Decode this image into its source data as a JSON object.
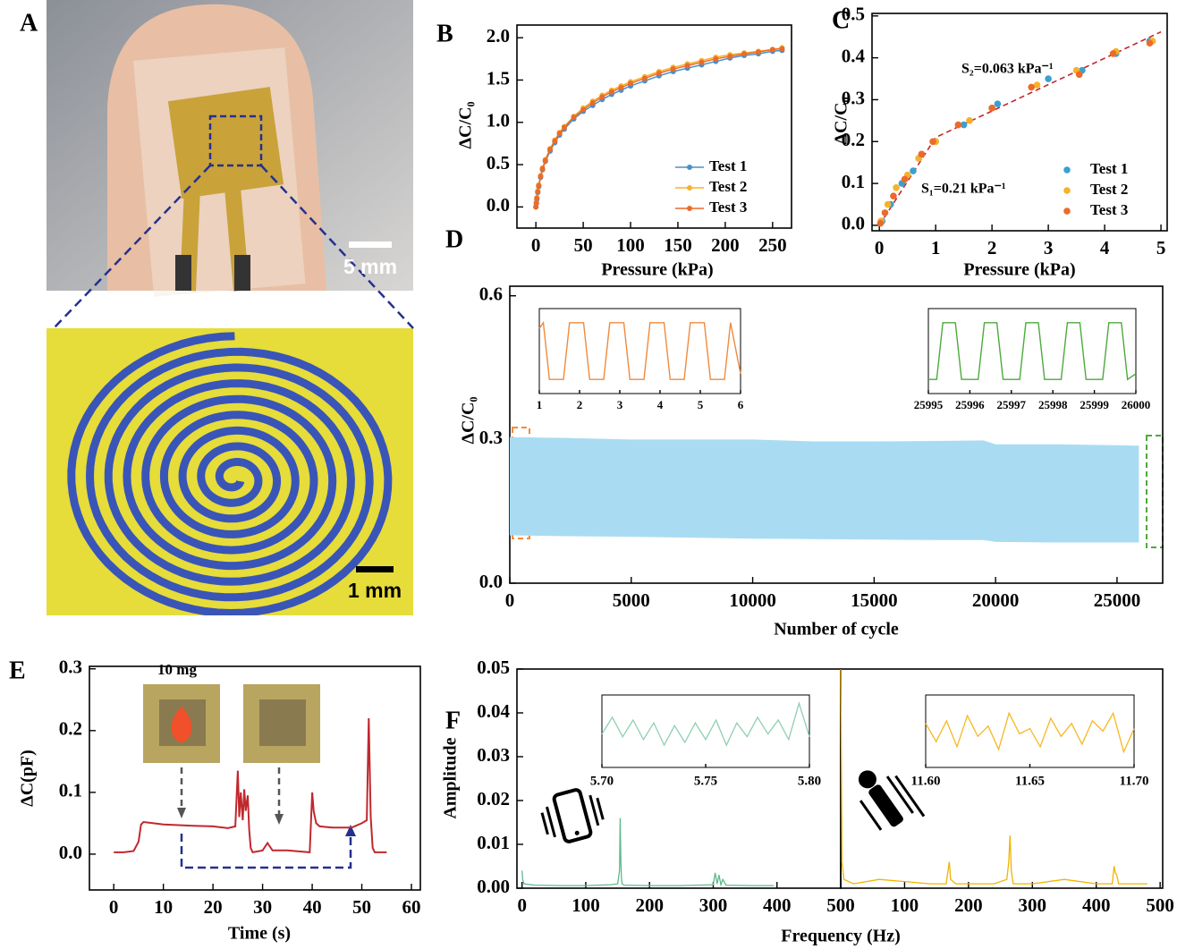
{
  "panel_a": {
    "label": "A",
    "scale_bars": [
      "5 mm",
      "1 mm"
    ]
  },
  "chart_data": [
    {
      "type": "line",
      "panel": "B",
      "xlabel": "Pressure (kPa)",
      "ylabel": "ΔC/C₀",
      "xlim": [
        -20,
        270
      ],
      "xticks": [
        0,
        50,
        100,
        150,
        200,
        250
      ],
      "ylim": [
        -0.25,
        2.15
      ],
      "yticks": [
        {
          "value": 0,
          "label": "0.0"
        },
        0.5,
        {
          "value": 1,
          "label": "1.0"
        },
        1.5,
        {
          "value": 2,
          "label": "2.0"
        }
      ],
      "legend": "lower right",
      "x": [
        0,
        0.5,
        1,
        2,
        3,
        5,
        7,
        10,
        15,
        20,
        25,
        30,
        40,
        50,
        60,
        70,
        80,
        90,
        100,
        115,
        130,
        145,
        160,
        175,
        190,
        205,
        220,
        235,
        250,
        260
      ],
      "series": [
        {
          "name": "Test 1",
          "color": "#4a90c8",
          "values": [
            0,
            0.04,
            0.09,
            0.17,
            0.24,
            0.35,
            0.44,
            0.54,
            0.66,
            0.76,
            0.85,
            0.92,
            1.04,
            1.13,
            1.2,
            1.27,
            1.33,
            1.38,
            1.43,
            1.49,
            1.55,
            1.6,
            1.64,
            1.68,
            1.72,
            1.76,
            1.79,
            1.81,
            1.84,
            1.85
          ]
        },
        {
          "name": "Test 2",
          "color": "#f5b22a",
          "values": [
            0,
            0.05,
            0.11,
            0.19,
            0.26,
            0.37,
            0.46,
            0.56,
            0.69,
            0.79,
            0.88,
            0.95,
            1.07,
            1.17,
            1.25,
            1.32,
            1.38,
            1.43,
            1.48,
            1.54,
            1.6,
            1.65,
            1.69,
            1.73,
            1.77,
            1.8,
            1.82,
            1.84,
            1.86,
            1.88
          ]
        },
        {
          "name": "Test 3",
          "color": "#ec6a2a",
          "values": [
            0,
            0.05,
            0.1,
            0.18,
            0.25,
            0.36,
            0.45,
            0.55,
            0.68,
            0.78,
            0.87,
            0.94,
            1.06,
            1.15,
            1.23,
            1.3,
            1.36,
            1.41,
            1.46,
            1.52,
            1.58,
            1.63,
            1.67,
            1.71,
            1.75,
            1.78,
            1.81,
            1.83,
            1.86,
            1.87
          ]
        }
      ]
    },
    {
      "type": "scatter",
      "panel": "C",
      "xlabel": "Pressure (kPa)",
      "ylabel": "ΔC/C₀",
      "xlim": [
        -0.13,
        5.11
      ],
      "xticks": [
        0,
        1,
        2,
        3,
        4,
        5
      ],
      "ylim": [
        -0.013,
        0.506
      ],
      "yticks": [
        {
          "value": 0,
          "label": "0.0"
        },
        0.1,
        0.2,
        0.3,
        0.4,
        0.5
      ],
      "legend": "lower right",
      "series": [
        {
          "name": "Test 1",
          "color": "#3aa0d0",
          "x": [
            0.05,
            0.2,
            0.4,
            0.6,
            0.7,
            1.0,
            1.5,
            2.1,
            3.0,
            3.6,
            4.2,
            4.8
          ],
          "values": [
            0.01,
            0.05,
            0.1,
            0.13,
            0.16,
            0.2,
            0.24,
            0.29,
            0.35,
            0.37,
            0.41,
            0.44
          ]
        },
        {
          "name": "Test 2",
          "color": "#f5b22a",
          "x": [
            0.03,
            0.15,
            0.3,
            0.5,
            0.7,
            1.0,
            1.6,
            2.0,
            2.8,
            3.5,
            4.2,
            4.85
          ],
          "values": [
            0.01,
            0.05,
            0.09,
            0.12,
            0.16,
            0.2,
            0.25,
            0.28,
            0.335,
            0.37,
            0.415,
            0.44
          ]
        },
        {
          "name": "Test 3",
          "color": "#ec6a2a",
          "x": [
            0.02,
            0.1,
            0.25,
            0.45,
            0.75,
            0.95,
            1.4,
            2.0,
            2.7,
            3.55,
            4.15,
            4.8
          ],
          "values": [
            0.005,
            0.03,
            0.07,
            0.11,
            0.17,
            0.2,
            0.24,
            0.28,
            0.33,
            0.36,
            0.41,
            0.435
          ]
        }
      ],
      "fit_line": {
        "color": "#c0282d",
        "x": [
          0,
          1,
          5
        ],
        "values": [
          0,
          0.21,
          0.462
        ]
      },
      "annotations": [
        "S₁=0.21 kPa⁻¹",
        "S₂=0.063 kPa⁻¹"
      ]
    },
    {
      "type": "area",
      "panel": "D",
      "xlabel": "Number of cycle",
      "ylabel": "ΔC/C₀",
      "xlim": [
        0,
        26880
      ],
      "xticks": [
        0,
        5000,
        10000,
        15000,
        20000,
        25000
      ],
      "ylim": [
        0,
        0.62
      ],
      "yticks": [
        {
          "value": 0,
          "label": "0.0"
        },
        0.3,
        0.6
      ],
      "color": "#a9dcf3",
      "x": [
        0,
        2500,
        5000,
        7500,
        10000,
        12500,
        15000,
        17500,
        19500,
        20000,
        22500,
        25000,
        25900
      ],
      "upper": [
        0.305,
        0.303,
        0.3,
        0.3,
        0.3,
        0.296,
        0.296,
        0.297,
        0.298,
        0.29,
        0.29,
        0.288,
        0.287
      ],
      "lower": [
        0.1,
        0.098,
        0.097,
        0.095,
        0.093,
        0.092,
        0.091,
        0.09,
        0.09,
        0.086,
        0.085,
        0.085,
        0.085
      ],
      "insets": [
        {
          "xlim": [
            1,
            6
          ],
          "xticks": [
            1,
            2,
            3,
            4,
            5,
            6
          ],
          "ylim": [
            0.05,
            0.35
          ],
          "color": "#f08a3c",
          "x": [
            1,
            1.1,
            1.25,
            1.6,
            1.75,
            2.1,
            2.25,
            2.6,
            2.75,
            3.1,
            3.25,
            3.6,
            3.75,
            4.1,
            4.25,
            4.6,
            4.75,
            5.1,
            5.25,
            5.6,
            5.75,
            6
          ],
          "values": [
            0.28,
            0.3,
            0.1,
            0.1,
            0.3,
            0.3,
            0.1,
            0.1,
            0.3,
            0.3,
            0.1,
            0.1,
            0.3,
            0.3,
            0.1,
            0.1,
            0.3,
            0.3,
            0.1,
            0.1,
            0.3,
            0.12
          ]
        },
        {
          "xlim": [
            25995,
            26000
          ],
          "xticks": [
            25995,
            25996,
            25997,
            25998,
            25999,
            26000
          ],
          "ylim": [
            0.05,
            0.35
          ],
          "color": "#4caa3c",
          "x": [
            25995,
            25995.2,
            25995.35,
            25995.65,
            25995.8,
            25996.2,
            25996.35,
            25996.65,
            25996.8,
            25997.2,
            25997.35,
            25997.65,
            25997.8,
            25998.2,
            25998.35,
            25998.65,
            25998.8,
            25999.2,
            25999.35,
            25999.65,
            25999.8,
            26000
          ],
          "values": [
            0.1,
            0.1,
            0.3,
            0.3,
            0.1,
            0.1,
            0.3,
            0.3,
            0.1,
            0.1,
            0.3,
            0.3,
            0.1,
            0.1,
            0.3,
            0.3,
            0.1,
            0.1,
            0.3,
            0.3,
            0.1,
            0.12
          ]
        }
      ]
    },
    {
      "type": "line",
      "panel": "E",
      "xlabel": "Time (s)",
      "ylabel": "ΔC(pF)",
      "xlim": [
        -4.9,
        61.8
      ],
      "xticks": [
        0,
        10,
        20,
        30,
        40,
        50,
        60
      ],
      "ylim": [
        -0.058,
        0.304
      ],
      "yticks": [
        {
          "value": 0,
          "label": "0.0"
        },
        0.1,
        0.2,
        0.3
      ],
      "color": "#c0282d",
      "annotation": "10 mg",
      "x": [
        0,
        2,
        4,
        5,
        5.5,
        6,
        8,
        10,
        13,
        16,
        20,
        23,
        24.5,
        25,
        25.3,
        25.6,
        26,
        26.3,
        26.6,
        27,
        27.3,
        27.6,
        28,
        30,
        31,
        32,
        35,
        39.5,
        40,
        40.3,
        40.8,
        41.5,
        44,
        48,
        50,
        51,
        51.4,
        51.8,
        52.2,
        52.6,
        55
      ],
      "values": [
        0.003,
        0.003,
        0.005,
        0.02,
        0.048,
        0.052,
        0.05,
        0.048,
        0.047,
        0.046,
        0.045,
        0.042,
        0.045,
        0.135,
        0.06,
        0.1,
        0.055,
        0.105,
        0.07,
        0.095,
        0.04,
        0.01,
        0.003,
        0.006,
        0.018,
        0.006,
        0.006,
        0.003,
        0.1,
        0.07,
        0.05,
        0.045,
        0.043,
        0.043,
        0.05,
        0.055,
        0.22,
        0.06,
        0.01,
        0.003,
        0.003
      ]
    },
    {
      "type": "spectrum",
      "panel": "F",
      "xlabel": "Frequency (Hz)",
      "ylabel": "Amplitude",
      "ylim": [
        0,
        0.05
      ],
      "yticks": [
        {
          "value": 0,
          "label": "0.00"
        },
        {
          "value": 0.01,
          "label": "0.01"
        },
        {
          "value": 0.02,
          "label": "0.02"
        },
        {
          "value": 0.03,
          "label": "0.03"
        },
        {
          "value": 0.04,
          "label": "0.04"
        },
        {
          "value": 0.05,
          "label": "0.05"
        }
      ],
      "subplots": [
        {
          "xlim": [
            -8,
            500
          ],
          "xticks": [
            0,
            100,
            200,
            300,
            400,
            500
          ],
          "color": "#5fb88e",
          "x": [
            0,
            1,
            3,
            20,
            60,
            100,
            140,
            150,
            153,
            154,
            155,
            156,
            157,
            160,
            200,
            250,
            300,
            303,
            306,
            309,
            312,
            315,
            320,
            360,
            395
          ],
          "values": [
            0.004,
            0.002,
            0.001,
            0.0007,
            0.0006,
            0.0006,
            0.0008,
            0.001,
            0.004,
            0.016,
            0.006,
            0.002,
            0.001,
            0.0007,
            0.0006,
            0.0006,
            0.0008,
            0.0035,
            0.001,
            0.003,
            0.0008,
            0.002,
            0.0007,
            0.0006,
            0.0006
          ],
          "inset": {
            "xlim": [
              5.7,
              5.8
            ],
            "xticks": [
              {
                "value": 5.7,
                "label": "5.70"
              },
              5.75,
              {
                "value": 5.8,
                "label": "5.80"
              }
            ],
            "ylim": [
              -1,
              1.6
            ],
            "color": "#8fcfb0",
            "x": [
              5.7,
              5.705,
              5.71,
              5.715,
              5.72,
              5.725,
              5.73,
              5.735,
              5.74,
              5.745,
              5.75,
              5.755,
              5.76,
              5.765,
              5.77,
              5.775,
              5.78,
              5.785,
              5.79,
              5.795,
              5.8
            ],
            "values": [
              0.2,
              0.8,
              0.1,
              0.7,
              0.0,
              0.6,
              -0.2,
              0.5,
              -0.1,
              0.6,
              0.0,
              0.7,
              -0.2,
              0.6,
              0.1,
              0.8,
              0.2,
              0.7,
              0.0,
              1.3,
              0.1
            ]
          }
        },
        {
          "xlim": [
            0,
            504
          ],
          "xticks": [
            100,
            200,
            300,
            400,
            500
          ],
          "color": "#f0b400",
          "x": [
            0,
            1,
            2,
            5,
            20,
            60,
            100,
            140,
            165,
            168,
            170,
            172,
            180,
            200,
            240,
            260,
            263,
            265,
            267,
            270,
            300,
            350,
            400,
            425,
            428,
            430,
            432,
            435,
            460,
            480
          ],
          "values": [
            0.05,
            0.03,
            0.006,
            0.002,
            0.001,
            0.002,
            0.0015,
            0.001,
            0.001,
            0.004,
            0.006,
            0.002,
            0.001,
            0.001,
            0.001,
            0.002,
            0.006,
            0.012,
            0.004,
            0.001,
            0.001,
            0.002,
            0.001,
            0.001,
            0.005,
            0.0035,
            0.003,
            0.001,
            0.001,
            0.001
          ],
          "inset": {
            "xlim": [
              11.6,
              11.7
            ],
            "xticks": [
              {
                "value": 11.6,
                "label": "11.60"
              },
              11.65,
              {
                "value": 11.7,
                "label": "11.70"
              }
            ],
            "ylim": [
              -1.2,
              1.6
            ],
            "color": "#f5b820",
            "x": [
              11.6,
              11.605,
              11.61,
              11.615,
              11.62,
              11.625,
              11.63,
              11.635,
              11.64,
              11.645,
              11.65,
              11.655,
              11.66,
              11.665,
              11.67,
              11.675,
              11.68,
              11.685,
              11.69,
              11.695,
              11.7
            ],
            "values": [
              0.5,
              -0.2,
              0.6,
              -0.4,
              0.8,
              0.0,
              0.4,
              -0.5,
              0.9,
              0.1,
              0.3,
              -0.4,
              0.7,
              0.0,
              0.5,
              -0.3,
              0.6,
              0.2,
              0.9,
              -0.6,
              0.3
            ]
          }
        }
      ]
    }
  ]
}
